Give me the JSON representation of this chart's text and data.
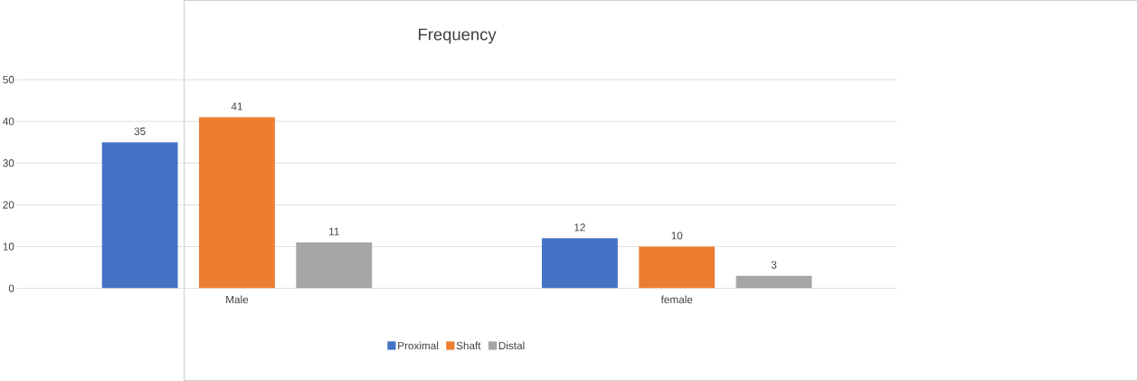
{
  "chart_data": {
    "type": "bar",
    "title": "Frequency",
    "categories": [
      "Male",
      "female"
    ],
    "series": [
      {
        "name": "Proximal",
        "color": "#4472c4",
        "values": [
          35,
          12
        ]
      },
      {
        "name": "Shaft",
        "color": "#ed7d31",
        "values": [
          41,
          10
        ]
      },
      {
        "name": "Distal",
        "color": "#a5a5a5",
        "values": [
          11,
          3
        ]
      }
    ],
    "ylim": [
      0,
      50
    ],
    "yticks": [
      0,
      10,
      20,
      30,
      40,
      50
    ],
    "grid": "y",
    "legend": "bottom",
    "data_labels": true
  }
}
